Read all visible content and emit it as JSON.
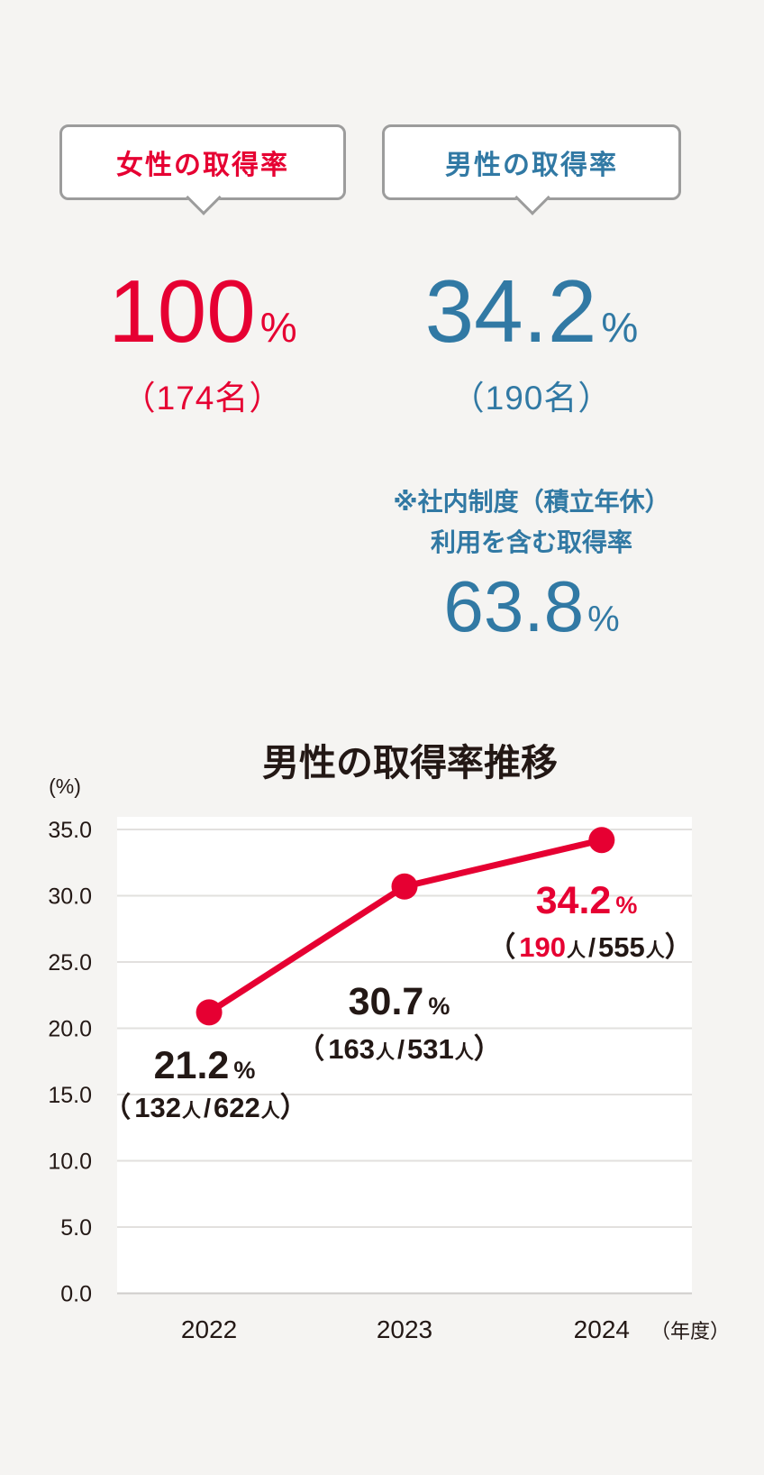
{
  "page": {
    "background": "#F5F4F2"
  },
  "colors": {
    "red": "#E60032",
    "blue": "#3179A4",
    "dark": "#231815",
    "grid": "#E2E0DE",
    "grid_baseline": "#CFCDCB",
    "plot_bg": "#FFFFFF",
    "bubble_border": "#9C9C9C"
  },
  "female": {
    "bubble_label": "女性の取得率",
    "value": "100",
    "unit": "%",
    "count": "（174名）"
  },
  "male": {
    "bubble_label": "男性の取得率",
    "value": "34.2",
    "unit": "%",
    "count": "（190名）",
    "note_line1": "※社内制度（積立年休）",
    "note_line2": "利用を含む取得率",
    "note_value": "63.8",
    "note_unit": "%"
  },
  "chart_data": {
    "type": "line",
    "title": "男性の取得率推移",
    "ylabel": "(%)",
    "x": [
      "2022",
      "2023",
      "2024"
    ],
    "x_suffix": "（年度）",
    "values": [
      21.2,
      30.7,
      34.2
    ],
    "ylim": [
      0,
      35
    ],
    "ytick_step": 5,
    "ytick_labels": [
      "35.0",
      "30.0",
      "25.0",
      "20.0",
      "15.0",
      "10.0",
      "5.0",
      "0.0"
    ],
    "grid": true,
    "legend": "none",
    "series_name": "男性の取得率",
    "highlight_index": 2,
    "percent_sign": "%",
    "person_sign": "人",
    "open_paren": "（",
    "close_paren": "）",
    "slash": "/",
    "point_labels": [
      {
        "value": "21.2",
        "num": "132",
        "den": "622"
      },
      {
        "value": "30.7",
        "num": "163",
        "den": "531"
      },
      {
        "value": "34.2",
        "num": "190",
        "den": "555"
      }
    ]
  }
}
